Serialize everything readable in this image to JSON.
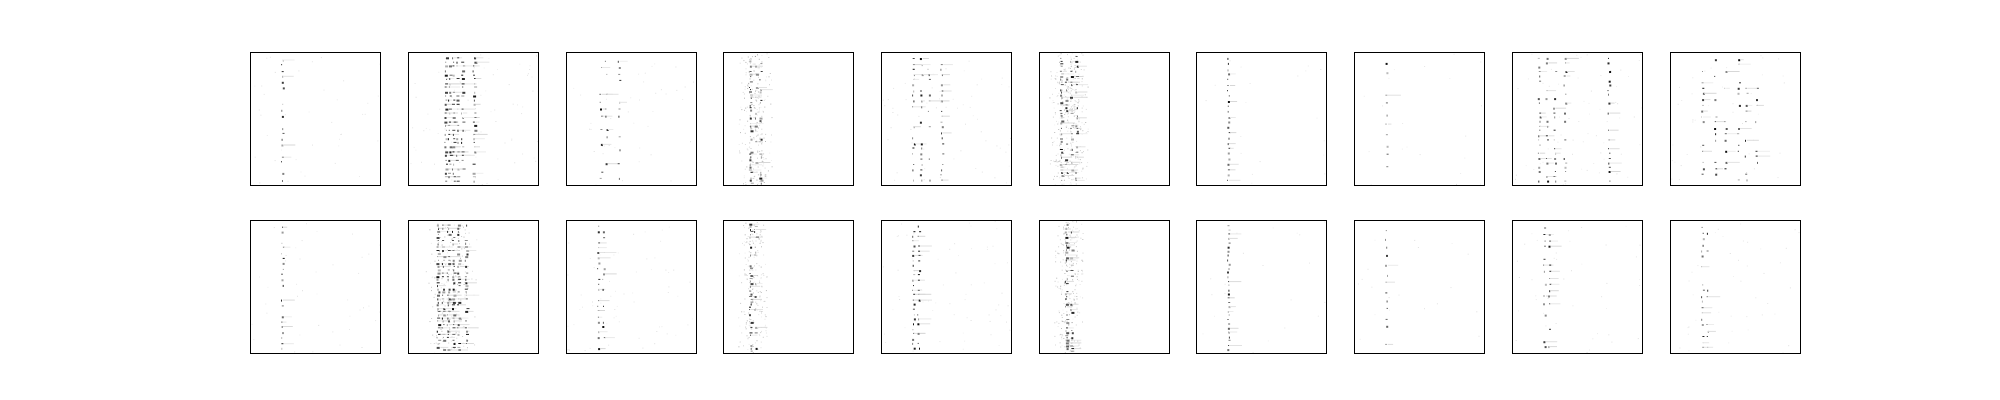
{
  "chart_data": {
    "type": "heatmap",
    "layout": {
      "rows": 2,
      "cols": 10
    },
    "colormap": "Greys",
    "title": "",
    "xlabel": "",
    "ylabel": "",
    "grid": false,
    "legend": "none",
    "axis_ticks": false,
    "panels": [
      {
        "row": 0,
        "col": 0,
        "pattern": "sparse-column",
        "columns": [
          0.24
        ],
        "rows": 22,
        "density": 0.55,
        "noise": 0.02
      },
      {
        "row": 0,
        "col": 1,
        "pattern": "multi-column-dense",
        "columns": [
          0.28,
          0.31,
          0.34,
          0.37,
          0.41,
          0.5
        ],
        "rows": 30,
        "density": 0.75,
        "noise": 0.04
      },
      {
        "row": 0,
        "col": 2,
        "pattern": "sparse-column",
        "columns": [
          0.26,
          0.3,
          0.4
        ],
        "rows": 18,
        "density": 0.45,
        "noise": 0.02
      },
      {
        "row": 0,
        "col": 3,
        "pattern": "noisy-band",
        "columns": [
          0.2,
          0.24,
          0.28
        ],
        "rows": 50,
        "density": 0.35,
        "noise": 0.12
      },
      {
        "row": 0,
        "col": 4,
        "pattern": "multi-column",
        "columns": [
          0.24,
          0.3,
          0.36,
          0.46
        ],
        "rows": 24,
        "density": 0.55,
        "noise": 0.03
      },
      {
        "row": 0,
        "col": 5,
        "pattern": "noisy-band",
        "columns": [
          0.16,
          0.2,
          0.24,
          0.28
        ],
        "rows": 50,
        "density": 0.4,
        "noise": 0.16
      },
      {
        "row": 0,
        "col": 6,
        "pattern": "sparse-column",
        "columns": [
          0.24
        ],
        "rows": 24,
        "density": 0.7,
        "noise": 0.01
      },
      {
        "row": 0,
        "col": 7,
        "pattern": "sparse-column",
        "columns": [
          0.24
        ],
        "rows": 12,
        "density": 0.65,
        "noise": 0.01
      },
      {
        "row": 0,
        "col": 8,
        "pattern": "multi-column",
        "columns": [
          0.2,
          0.26,
          0.32,
          0.4,
          0.74
        ],
        "rows": 28,
        "density": 0.5,
        "noise": 0.03
      },
      {
        "row": 0,
        "col": 9,
        "pattern": "multi-column",
        "columns": [
          0.24,
          0.34,
          0.42,
          0.52,
          0.58,
          0.66
        ],
        "rows": 22,
        "density": 0.5,
        "noise": 0.02
      },
      {
        "row": 1,
        "col": 0,
        "pattern": "sparse-column",
        "columns": [
          0.24
        ],
        "rows": 24,
        "density": 0.6,
        "noise": 0.02
      },
      {
        "row": 1,
        "col": 1,
        "pattern": "dense-band",
        "columns": [
          0.22,
          0.26,
          0.3,
          0.34,
          0.38,
          0.44
        ],
        "rows": 40,
        "density": 0.7,
        "noise": 0.1
      },
      {
        "row": 1,
        "col": 2,
        "pattern": "sparse-column",
        "columns": [
          0.24,
          0.28
        ],
        "rows": 24,
        "density": 0.6,
        "noise": 0.03
      },
      {
        "row": 1,
        "col": 3,
        "pattern": "noisy-band",
        "columns": [
          0.2,
          0.24
        ],
        "rows": 50,
        "density": 0.4,
        "noise": 0.1
      },
      {
        "row": 1,
        "col": 4,
        "pattern": "sparse-column",
        "columns": [
          0.24,
          0.28
        ],
        "rows": 26,
        "density": 0.7,
        "noise": 0.03
      },
      {
        "row": 1,
        "col": 5,
        "pattern": "noisy-band",
        "columns": [
          0.2,
          0.24
        ],
        "rows": 50,
        "density": 0.38,
        "noise": 0.12
      },
      {
        "row": 1,
        "col": 6,
        "pattern": "sparse-column",
        "columns": [
          0.24
        ],
        "rows": 30,
        "density": 0.8,
        "noise": 0.01
      },
      {
        "row": 1,
        "col": 7,
        "pattern": "sparse-column",
        "columns": [
          0.24
        ],
        "rows": 14,
        "density": 0.65,
        "noise": 0.01
      },
      {
        "row": 1,
        "col": 8,
        "pattern": "sparse-column",
        "columns": [
          0.24,
          0.28
        ],
        "rows": 20,
        "density": 0.5,
        "noise": 0.02
      },
      {
        "row": 1,
        "col": 9,
        "pattern": "sparse-column",
        "columns": [
          0.24,
          0.28
        ],
        "rows": 22,
        "density": 0.55,
        "noise": 0.02
      }
    ]
  }
}
